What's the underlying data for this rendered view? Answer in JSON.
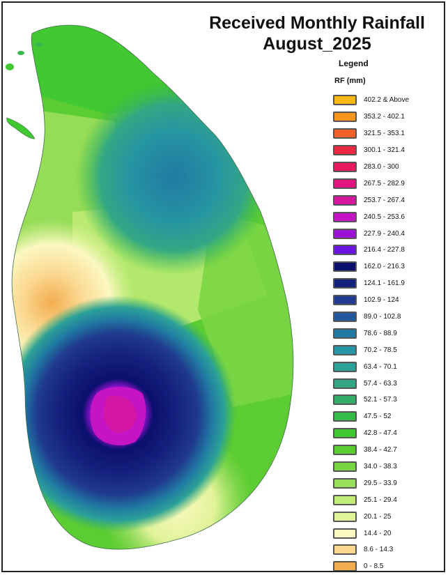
{
  "map": {
    "title_line1": "Received Monthly Rainfall",
    "title_line2": "August_2025",
    "legend_heading": "Legend",
    "legend_unit": "RF (mm)",
    "legend": [
      {
        "label": "402.2 & Above",
        "color": "#f7b80d"
      },
      {
        "label": "353.2 - 402.1",
        "color": "#f6961e"
      },
      {
        "label": "321.5 - 353.1",
        "color": "#f1612a"
      },
      {
        "label": "300.1 - 321.4",
        "color": "#ec2843"
      },
      {
        "label": "283.0 - 300",
        "color": "#e8195e"
      },
      {
        "label": "267.5 - 282.9",
        "color": "#e3147f"
      },
      {
        "label": "253.7 - 267.4",
        "color": "#d6169e"
      },
      {
        "label": "240.5 - 253.6",
        "color": "#c514c4"
      },
      {
        "label": "227.9 - 240.4",
        "color": "#9b12d6"
      },
      {
        "label": "216.4 - 227.8",
        "color": "#6a14e1"
      },
      {
        "label": "162.0 - 216.3",
        "color": "#0b0f6e"
      },
      {
        "label": "124.1 - 161.9",
        "color": "#15217e"
      },
      {
        "label": "102.9 - 124",
        "color": "#1f3a8e"
      },
      {
        "label": "89.0 - 102.8",
        "color": "#21579c"
      },
      {
        "label": "78.6 - 88.9",
        "color": "#217aa2"
      },
      {
        "label": "70.2 - 78.5",
        "color": "#2594a3"
      },
      {
        "label": "63.4 - 70.1",
        "color": "#2ba198"
      },
      {
        "label": "57.4 - 63.3",
        "color": "#33a784"
      },
      {
        "label": "52.1 - 57.3",
        "color": "#33ad69"
      },
      {
        "label": "47.5 - 52",
        "color": "#36ba48"
      },
      {
        "label": "42.8 - 47.4",
        "color": "#3fc830"
      },
      {
        "label": "38.4 - 42.7",
        "color": "#5ccc33"
      },
      {
        "label": "34.0 - 38.3",
        "color": "#7ad544"
      },
      {
        "label": "29.5 - 33.9",
        "color": "#9bde5b"
      },
      {
        "label": "25.1 - 29.4",
        "color": "#c1ec77"
      },
      {
        "label": "20.1 - 25",
        "color": "#e1f39a"
      },
      {
        "label": "14.4 - 20",
        "color": "#fbf8c1"
      },
      {
        "label": "8.6 - 14.3",
        "color": "#fbd892"
      },
      {
        "label": "0 - 8.5",
        "color": "#f3ad4f"
      }
    ]
  }
}
